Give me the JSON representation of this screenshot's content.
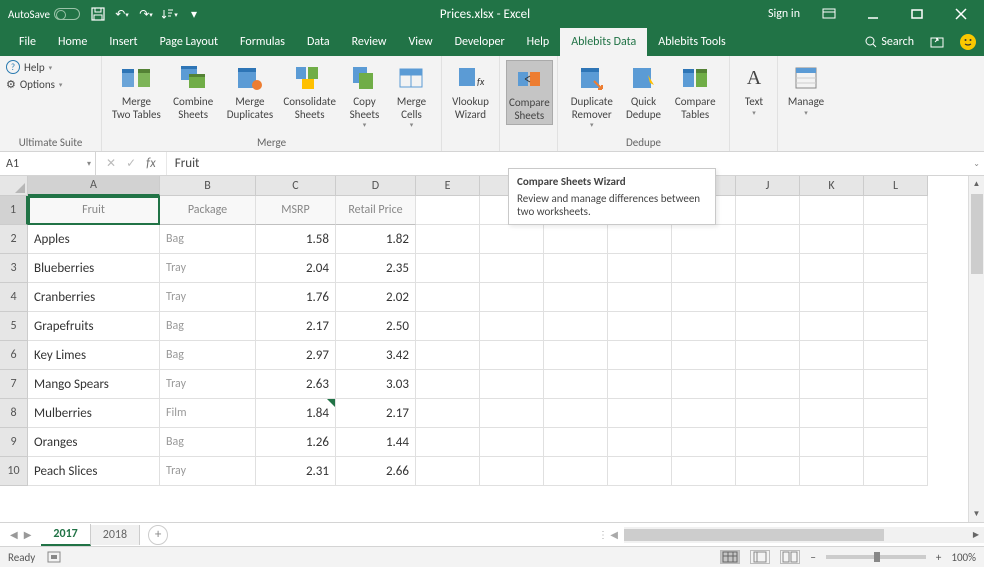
{
  "title": {
    "autosave": "AutoSave",
    "autosave_state": "Off",
    "filename": "Prices.xlsx - Excel",
    "signin": "Sign in"
  },
  "menus": [
    "File",
    "Home",
    "Insert",
    "Page Layout",
    "Formulas",
    "Data",
    "Review",
    "View",
    "Developer",
    "Help",
    "Ablebits Data",
    "Ablebits Tools"
  ],
  "active_menu": "Ablebits Data",
  "search_label": "Search",
  "ribbon": {
    "ultimate_group": {
      "help": "Help",
      "options": "Options",
      "label": "Ultimate Suite"
    },
    "merge_group": {
      "label": "Merge",
      "buttons": {
        "merge_two": "Merge\nTwo Tables",
        "combine": "Combine\nSheets",
        "merge_dup": "Merge\nDuplicates",
        "consolidate": "Consolidate\nSheets",
        "copy": "Copy\nSheets",
        "merge_cells": "Merge\nCells"
      }
    },
    "vlookup": "Vlookup\nWizard",
    "compare": "Compare\nSheets",
    "dedupe_group": {
      "label": "Dedupe",
      "buttons": {
        "dup_remover": "Duplicate\nRemover",
        "quick": "Quick\nDedupe",
        "comp_tables": "Compare\nTables"
      }
    },
    "text": "Text",
    "manage": "Manage"
  },
  "tooltip": {
    "title": "Compare Sheets Wizard",
    "body": "Review and manage differences between two worksheets."
  },
  "formula_bar": {
    "cell_ref": "A1",
    "value": "Fruit"
  },
  "columns": [
    "A",
    "B",
    "C",
    "D",
    "E",
    "F",
    "G",
    "H",
    "I",
    "J",
    "K",
    "L"
  ],
  "headers": [
    "Fruit",
    "Package",
    "MSRP",
    "Retail Price"
  ],
  "rows": [
    {
      "n": 1,
      "fruit": "Apples",
      "package": "Bag",
      "msrp": "1.58",
      "retail": "1.82"
    },
    {
      "n": 2,
      "fruit": "Blueberries",
      "package": "Tray",
      "msrp": "2.04",
      "retail": "2.35"
    },
    {
      "n": 3,
      "fruit": "Cranberries",
      "package": "Tray",
      "msrp": "1.76",
      "retail": "2.02"
    },
    {
      "n": 4,
      "fruit": "Grapefruits",
      "package": "Bag",
      "msrp": "2.17",
      "retail": "2.50"
    },
    {
      "n": 5,
      "fruit": "Key Limes",
      "package": "Bag",
      "msrp": "2.97",
      "retail": "3.42"
    },
    {
      "n": 6,
      "fruit": "Mango Spears",
      "package": "Tray",
      "msrp": "2.63",
      "retail": "3.03"
    },
    {
      "n": 7,
      "fruit": "Mulberries",
      "package": "Film",
      "msrp": "1.84",
      "retail": "2.17",
      "mark": true
    },
    {
      "n": 8,
      "fruit": "Oranges",
      "package": "Bag",
      "msrp": "1.26",
      "retail": "1.44"
    },
    {
      "n": 9,
      "fruit": "Peach Slices",
      "package": "Tray",
      "msrp": "2.31",
      "retail": "2.66"
    }
  ],
  "sheets": {
    "active": "2017",
    "inactive": "2018"
  },
  "status": {
    "ready": "Ready",
    "zoom": "100%"
  },
  "colors": {
    "excel_green": "#217346",
    "ribbon_bg": "#f3f3f3",
    "grid_border": "#e0e0e0",
    "header_bg": "#e6e6e6"
  }
}
